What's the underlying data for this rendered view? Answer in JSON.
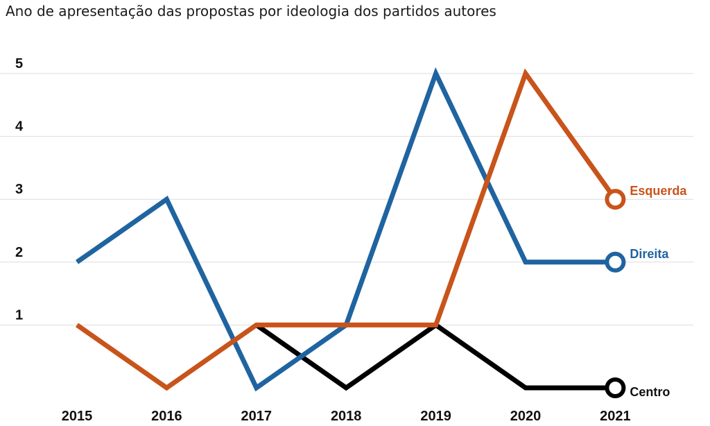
{
  "chart_data": {
    "type": "line",
    "title": "Ano de apresentação das propostas por ideologia dos partidos autores",
    "xlabel": "",
    "ylabel": "",
    "x": [
      "2015",
      "2016",
      "2017",
      "2018",
      "2019",
      "2020",
      "2021"
    ],
    "y_ticks": [
      1,
      2,
      3,
      4,
      5
    ],
    "ylim": [
      0,
      5
    ],
    "grid": true,
    "legend": "end-of-line labels",
    "series": [
      {
        "name": "Direita",
        "color": "#1f64a0",
        "x": [
          "2015",
          "2016",
          "2017",
          "2018",
          "2019",
          "2020",
          "2021"
        ],
        "values": [
          2,
          3,
          0,
          1,
          5,
          2,
          2
        ]
      },
      {
        "name": "Esquerda",
        "color": "#c8541b",
        "x": [
          "2015",
          "2016",
          "2017",
          "2018",
          "2019",
          "2020",
          "2021"
        ],
        "values": [
          1,
          0,
          1,
          1,
          1,
          5,
          3
        ]
      },
      {
        "name": "Centro",
        "color": "#000000",
        "x": [
          "2017",
          "2018",
          "2019",
          "2020",
          "2021"
        ],
        "values": [
          1,
          0,
          1,
          0,
          0
        ]
      }
    ]
  }
}
